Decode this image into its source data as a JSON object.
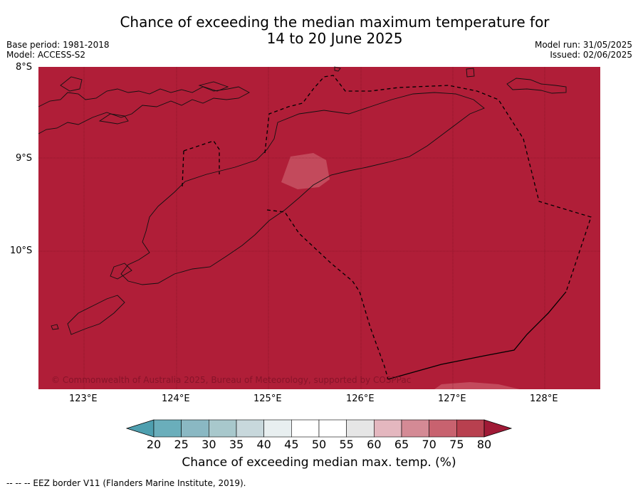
{
  "title": {
    "line1": "Chance of exceeding the median maximum temperature for",
    "line2": "14 to 20 June 2025"
  },
  "meta_left": {
    "base_period": "Base period: 1981-2018",
    "model": "Model: ACCESS-S2"
  },
  "meta_right": {
    "model_run": "Model run: 31/05/2025",
    "issued": "Issued: 02/06/2025"
  },
  "map": {
    "fill_color": "#b01e38",
    "lighter_patch_color": "#c34a5c",
    "latitude_labels": [
      "8°S",
      "9°S",
      "10°S"
    ],
    "longitude_labels": [
      "123°E",
      "124°E",
      "125°E",
      "126°E",
      "127°E",
      "128°E"
    ],
    "copyright": "© Commonwealth of Australia 2025, Bureau of Meteorology, supported by COSPPac"
  },
  "colorbar": {
    "ticks": [
      "20",
      "25",
      "30",
      "35",
      "40",
      "45",
      "50",
      "55",
      "60",
      "65",
      "70",
      "75",
      "80"
    ],
    "colors": [
      "#4e9faf",
      "#6aaebb",
      "#8ab8c3",
      "#a8c8cc",
      "#c8d8dc",
      "#e8eff0",
      "#ffffff",
      "#ffffff",
      "#e6e6e6",
      "#e4b7bf",
      "#d48a95",
      "#c8626f",
      "#b8404f",
      "#a01a36"
    ],
    "caption": "Chance of exceeding median max. temp. (%)"
  },
  "footer": "--  --  -- EEZ border V11 (Flanders Marine Institute, 2019)."
}
